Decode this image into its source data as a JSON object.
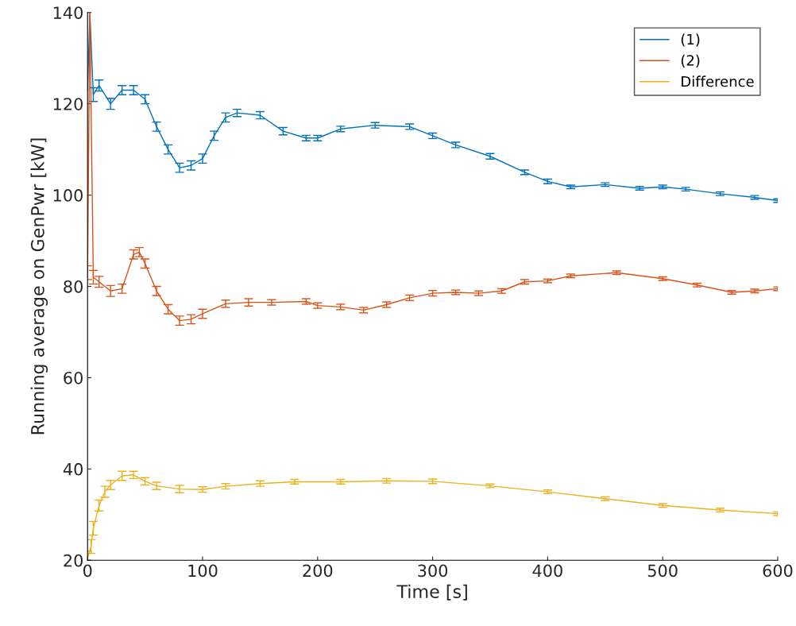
{
  "chart_data": {
    "type": "line",
    "xlabel": "Time [s]",
    "ylabel": "Running average on GenPwr [kW]",
    "xlim": [
      0,
      600
    ],
    "xticks": [
      0,
      100,
      200,
      300,
      400,
      500,
      600
    ],
    "ylim": [
      20,
      140
    ],
    "yticks": [
      20,
      40,
      60,
      80,
      100,
      120,
      140
    ],
    "grid": false,
    "legend": "top right",
    "marker": "none",
    "line_style": "solid",
    "series": [
      {
        "name": "(1)",
        "color": "#0072bd",
        "x": [
          0,
          2,
          5,
          10,
          20,
          30,
          40,
          50,
          60,
          70,
          80,
          90,
          100,
          110,
          120,
          130,
          150,
          170,
          190,
          200,
          220,
          250,
          280,
          300,
          320,
          350,
          380,
          400,
          420,
          450,
          480,
          500,
          520,
          550,
          580,
          600
        ],
        "values": [
          123,
          140,
          122,
          124,
          120,
          123,
          123,
          121,
          115,
          110,
          106,
          106.5,
          108,
          113,
          117,
          118,
          117.5,
          114,
          112.5,
          112.5,
          114.5,
          115.3,
          115,
          113,
          111,
          108.5,
          105,
          103,
          101.8,
          102.3,
          101.5,
          101.8,
          101.3,
          100.3,
          99.5,
          98.8
        ],
        "errors": [
          null,
          null,
          1.5,
          1.2,
          1.2,
          1,
          1,
          1,
          1,
          1,
          1,
          1,
          1,
          1,
          1,
          0.8,
          0.8,
          0.8,
          0.6,
          0.6,
          0.6,
          0.6,
          0.6,
          0.6,
          0.6,
          0.6,
          0.5,
          0.5,
          0.4,
          0.4,
          0.4,
          0.4,
          0.4,
          0.4,
          0.4,
          0.4
        ]
      },
      {
        "name": "(2)",
        "color": "#d95319",
        "x": [
          0,
          2,
          5,
          10,
          20,
          30,
          40,
          45,
          50,
          60,
          70,
          80,
          90,
          100,
          120,
          140,
          160,
          190,
          200,
          220,
          240,
          260,
          280,
          300,
          320,
          340,
          360,
          380,
          400,
          420,
          460,
          500,
          530,
          560,
          580,
          600
        ],
        "values": [
          83,
          140,
          82,
          81,
          79,
          79.5,
          87,
          87.5,
          85,
          79,
          75,
          72.5,
          72.8,
          74,
          76.2,
          76.5,
          76.5,
          76.7,
          75.8,
          75.5,
          74.8,
          76,
          77.5,
          78.5,
          78.7,
          78.5,
          79,
          81,
          81.2,
          82.3,
          83,
          81.7,
          80.3,
          78.7,
          79,
          79.5
        ],
        "errors": [
          1.5,
          null,
          1.5,
          1.2,
          1.2,
          1,
          1,
          1,
          1,
          1,
          1,
          1,
          1,
          1,
          0.8,
          0.8,
          0.6,
          0.6,
          0.6,
          0.6,
          0.6,
          0.6,
          0.6,
          0.6,
          0.5,
          0.5,
          0.5,
          0.5,
          0.4,
          0.4,
          0.4,
          0.4,
          0.4,
          0.4,
          0.4,
          0.4
        ]
      },
      {
        "name": "Difference",
        "color": "#edb120",
        "x": [
          0,
          3,
          5,
          10,
          15,
          20,
          30,
          40,
          50,
          60,
          80,
          100,
          120,
          150,
          180,
          220,
          260,
          300,
          350,
          400,
          450,
          500,
          550,
          600
        ],
        "values": [
          20.5,
          23,
          27,
          32,
          35,
          36.5,
          38.5,
          38.7,
          37.3,
          36.3,
          35.6,
          35.5,
          36.2,
          36.8,
          37.2,
          37.2,
          37.4,
          37.3,
          36.3,
          35,
          33.5,
          32,
          31,
          30.2
        ],
        "errors": [
          1.5,
          1.5,
          1.5,
          1.2,
          1.2,
          1,
          1,
          0.8,
          0.8,
          0.8,
          0.8,
          0.6,
          0.6,
          0.6,
          0.5,
          0.5,
          0.5,
          0.5,
          0.4,
          0.4,
          0.4,
          0.4,
          0.4,
          0.4
        ]
      }
    ]
  }
}
